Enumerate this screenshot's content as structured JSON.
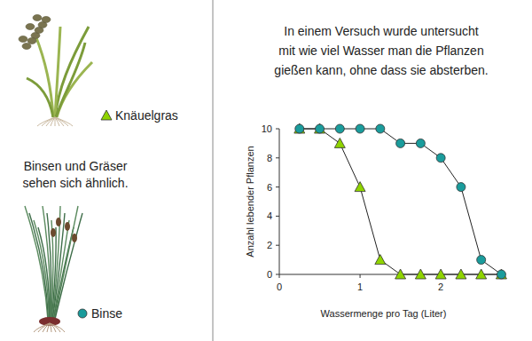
{
  "chart_data": {
    "type": "line",
    "title": [
      "In einem Versuch wurde untersucht",
      "mit wie viel Wasser man die Pflanzen",
      "gießen kann, ohne dass sie absterben."
    ],
    "x_label": "Wassermenge pro Tag (Liter)",
    "y_label": "Anzahl lebender Pflanzen",
    "annotations": [
      {
        "lines": [
          "Binsen und Gräser",
          "sehen sich ähnlich."
        ]
      }
    ],
    "x": [
      0.25,
      0.5,
      0.75,
      1,
      1.25,
      1.5,
      1.75,
      2,
      2.25,
      2.5,
      2.75
    ],
    "series": [
      {
        "name": "Knäuelgras",
        "color": "#8fd400",
        "marker": "triangle",
        "values": [
          10,
          10,
          9,
          6,
          1,
          0,
          0,
          0,
          0,
          0,
          0
        ]
      },
      {
        "name": "Binse",
        "color": "#1a9c9c",
        "marker": "circle",
        "values": [
          10,
          10,
          10,
          10,
          10,
          9,
          9,
          8,
          6,
          1,
          0
        ]
      }
    ],
    "xlim": [
      0,
      2.8
    ],
    "xticks": [
      0,
      1,
      2
    ],
    "ylim": [
      0,
      10
    ],
    "yticks": [
      0,
      2,
      4,
      6,
      8,
      10
    ],
    "grid": false
  }
}
